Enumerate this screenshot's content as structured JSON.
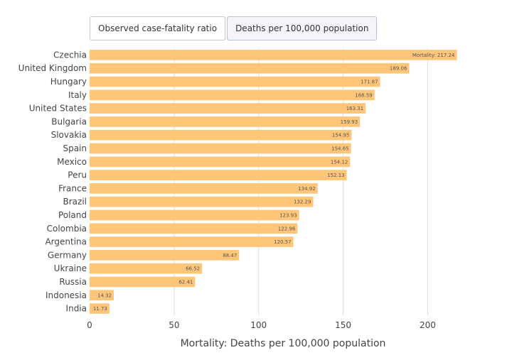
{
  "tabs": [
    {
      "label": "Observed case-fatality ratio",
      "active": false
    },
    {
      "label": "Deaths per 100,000 population",
      "active": true
    }
  ],
  "colors": {
    "bar": "#ffc67a",
    "grid": "#dddddd",
    "text": "#444444"
  },
  "chart_data": {
    "type": "bar",
    "orientation": "horizontal",
    "categories": [
      "Czechia",
      "United Kingdom",
      "Hungary",
      "Italy",
      "United States",
      "Bulgaria",
      "Slovakia",
      "Spain",
      "Mexico",
      "Peru",
      "France",
      "Brazil",
      "Poland",
      "Colombia",
      "Argentina",
      "Germany",
      "Ukraine",
      "Russia",
      "Indonesia",
      "India"
    ],
    "values": [
      217.24,
      189.06,
      171.87,
      168.59,
      163.31,
      159.93,
      154.95,
      154.65,
      154.12,
      152.13,
      134.92,
      132.29,
      123.93,
      122.96,
      120.57,
      88.47,
      66.52,
      62.41,
      14.32,
      11.73
    ],
    "data_labels": [
      "Mortality: 217.24",
      "189.06",
      "171.87",
      "168.59",
      "163.31",
      "159.93",
      "154.95",
      "154.65",
      "154.12",
      "152.13",
      "134.92",
      "132.29",
      "123.93",
      "122.96",
      "120.57",
      "88.47",
      "66.52",
      "62.41",
      "14.32",
      "11.73"
    ],
    "xlabel": "Mortality: Deaths per 100,000 population",
    "xticks": [
      0,
      50,
      100,
      150,
      200
    ],
    "xlim": [
      0,
      228
    ],
    "grid": true
  }
}
